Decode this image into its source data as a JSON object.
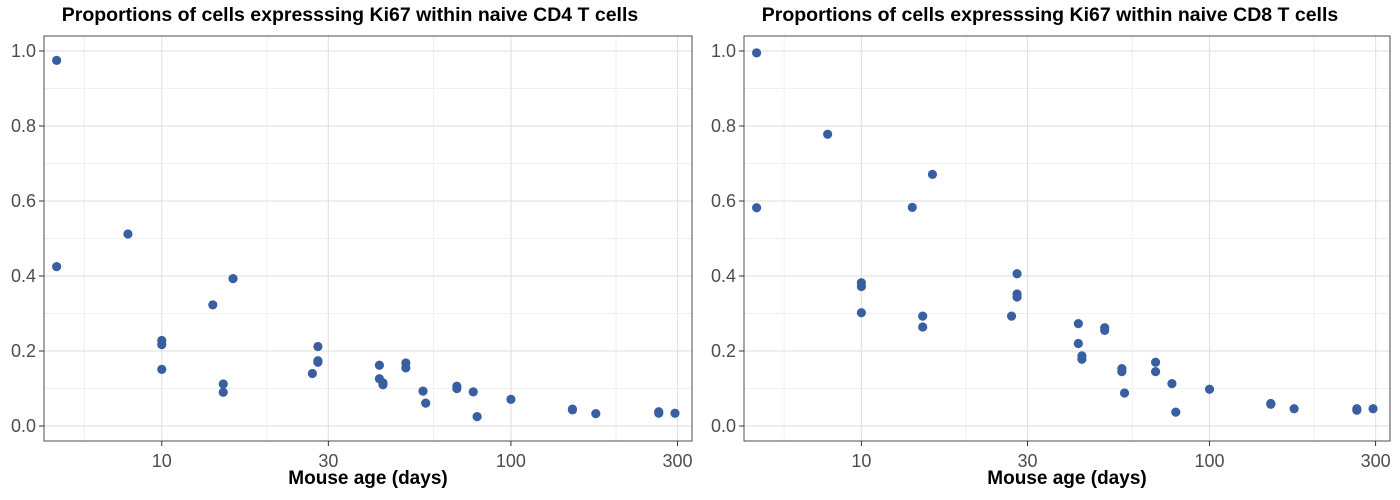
{
  "chart_data": [
    {
      "type": "scatter",
      "title": "Proportions of cells expresssing Ki67 within naive CD4 T cells",
      "xlabel": "Mouse age (days)",
      "ylabel": "",
      "x_scale": "log10",
      "xlim": [
        4.6,
        330
      ],
      "ylim": [
        -0.04,
        1.04
      ],
      "x_ticks": [
        10,
        30,
        100,
        300
      ],
      "x_tick_labels": [
        "10",
        "30",
        "100",
        "300"
      ],
      "x_minor_ticks": [
        6,
        20,
        60,
        200
      ],
      "y_ticks": [
        0,
        0.2,
        0.4,
        0.6,
        0.8,
        1
      ],
      "y_tick_labels": [
        "0.0",
        "0.2",
        "0.4",
        "0.6",
        "0.8",
        "1.0"
      ],
      "y_minor_ticks": [
        0.1,
        0.3,
        0.5,
        0.7,
        0.9
      ],
      "grid": true,
      "point_color": "#3A5FA0",
      "points": [
        {
          "x": 5,
          "y": 0.975
        },
        {
          "x": 5,
          "y": 0.425
        },
        {
          "x": 8,
          "y": 0.512
        },
        {
          "x": 10,
          "y": 0.228
        },
        {
          "x": 10,
          "y": 0.217
        },
        {
          "x": 10,
          "y": 0.151
        },
        {
          "x": 14,
          "y": 0.323
        },
        {
          "x": 15,
          "y": 0.112
        },
        {
          "x": 15,
          "y": 0.09
        },
        {
          "x": 16,
          "y": 0.393
        },
        {
          "x": 27,
          "y": 0.14
        },
        {
          "x": 28,
          "y": 0.212
        },
        {
          "x": 28,
          "y": 0.174
        },
        {
          "x": 28,
          "y": 0.17
        },
        {
          "x": 42,
          "y": 0.162
        },
        {
          "x": 42,
          "y": 0.126
        },
        {
          "x": 43,
          "y": 0.115
        },
        {
          "x": 43,
          "y": 0.11
        },
        {
          "x": 50,
          "y": 0.168
        },
        {
          "x": 50,
          "y": 0.155
        },
        {
          "x": 56,
          "y": 0.093
        },
        {
          "x": 57,
          "y": 0.061
        },
        {
          "x": 70,
          "y": 0.106
        },
        {
          "x": 70,
          "y": 0.1
        },
        {
          "x": 78,
          "y": 0.091
        },
        {
          "x": 80,
          "y": 0.025
        },
        {
          "x": 100,
          "y": 0.071
        },
        {
          "x": 150,
          "y": 0.045
        },
        {
          "x": 150,
          "y": 0.043
        },
        {
          "x": 175,
          "y": 0.033
        },
        {
          "x": 265,
          "y": 0.038
        },
        {
          "x": 265,
          "y": 0.034
        },
        {
          "x": 295,
          "y": 0.034
        }
      ]
    },
    {
      "type": "scatter",
      "title": "Proportions of cells expresssing Ki67 within naive CD8 T cells",
      "xlabel": "Mouse age (days)",
      "ylabel": "",
      "x_scale": "log10",
      "xlim": [
        4.6,
        330
      ],
      "ylim": [
        -0.04,
        1.04
      ],
      "x_ticks": [
        10,
        30,
        100,
        300
      ],
      "x_tick_labels": [
        "10",
        "30",
        "100",
        "300"
      ],
      "x_minor_ticks": [
        6,
        20,
        60,
        200
      ],
      "y_ticks": [
        0,
        0.2,
        0.4,
        0.6,
        0.8,
        1
      ],
      "y_tick_labels": [
        "0.0",
        "0.2",
        "0.4",
        "0.6",
        "0.8",
        "1.0"
      ],
      "y_minor_ticks": [
        0.1,
        0.3,
        0.5,
        0.7,
        0.9
      ],
      "grid": true,
      "point_color": "#3A5FA0",
      "points": [
        {
          "x": 5,
          "y": 0.995
        },
        {
          "x": 5,
          "y": 0.582
        },
        {
          "x": 8,
          "y": 0.778
        },
        {
          "x": 10,
          "y": 0.382
        },
        {
          "x": 10,
          "y": 0.372
        },
        {
          "x": 10,
          "y": 0.302
        },
        {
          "x": 14,
          "y": 0.583
        },
        {
          "x": 15,
          "y": 0.293
        },
        {
          "x": 15,
          "y": 0.264
        },
        {
          "x": 16,
          "y": 0.671
        },
        {
          "x": 27,
          "y": 0.293
        },
        {
          "x": 28,
          "y": 0.406
        },
        {
          "x": 28,
          "y": 0.352
        },
        {
          "x": 28,
          "y": 0.344
        },
        {
          "x": 42,
          "y": 0.273
        },
        {
          "x": 42,
          "y": 0.22
        },
        {
          "x": 43,
          "y": 0.187
        },
        {
          "x": 43,
          "y": 0.178
        },
        {
          "x": 50,
          "y": 0.262
        },
        {
          "x": 50,
          "y": 0.255
        },
        {
          "x": 56,
          "y": 0.153
        },
        {
          "x": 56,
          "y": 0.145
        },
        {
          "x": 57,
          "y": 0.088
        },
        {
          "x": 70,
          "y": 0.17
        },
        {
          "x": 70,
          "y": 0.145
        },
        {
          "x": 78,
          "y": 0.113
        },
        {
          "x": 80,
          "y": 0.037
        },
        {
          "x": 100,
          "y": 0.098
        },
        {
          "x": 150,
          "y": 0.06
        },
        {
          "x": 150,
          "y": 0.058
        },
        {
          "x": 175,
          "y": 0.046
        },
        {
          "x": 265,
          "y": 0.046
        },
        {
          "x": 265,
          "y": 0.042
        },
        {
          "x": 295,
          "y": 0.046
        }
      ]
    }
  ]
}
